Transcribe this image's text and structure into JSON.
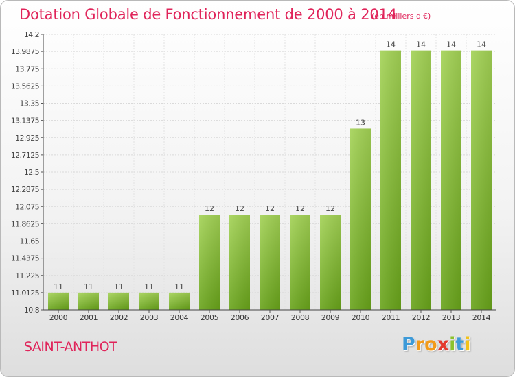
{
  "chart_data": {
    "type": "bar",
    "title": "Dotation Globale de Fonctionnement de 2000 à 2014",
    "unit_label": "(en milliers d'€)",
    "categories": [
      "2000",
      "2001",
      "2002",
      "2003",
      "2004",
      "2005",
      "2006",
      "2007",
      "2008",
      "2009",
      "2010",
      "2011",
      "2012",
      "2013",
      "2014"
    ],
    "values": [
      11,
      11,
      11,
      11,
      11,
      12,
      12,
      12,
      12,
      12,
      13,
      14,
      14,
      14,
      14
    ],
    "bar_levels": [
      11.0125,
      11.0125,
      11.0125,
      11.0125,
      11.0125,
      11.975,
      11.975,
      11.975,
      11.975,
      11.975,
      13.0375,
      14.0,
      14.0,
      14.0,
      14.0
    ],
    "value_labels": [
      "11",
      "11",
      "11",
      "11",
      "11",
      "12",
      "12",
      "12",
      "12",
      "12",
      "13",
      "14",
      "14",
      "14",
      "14"
    ],
    "ylim": [
      10.8,
      14.2
    ],
    "yticks": [
      "14.2",
      "13.9875",
      "13.775",
      "13.5625",
      "13.35",
      "13.1375",
      "12.925",
      "12.7125",
      "12.5",
      "12.2875",
      "12.075",
      "11.8625",
      "11.65",
      "11.4375",
      "11.225",
      "11.0125",
      "10.8"
    ],
    "ytick_values": [
      14.2,
      13.9875,
      13.775,
      13.5625,
      13.35,
      13.1375,
      12.925,
      12.7125,
      12.5,
      12.2875,
      12.075,
      11.8625,
      11.65,
      11.4375,
      11.225,
      11.0125,
      10.8
    ],
    "grid": true,
    "xlabel": "",
    "ylabel": "",
    "colors": {
      "bar_light": "#9ccc4a",
      "bar_dark": "#6aa51c",
      "text": "#e0245a",
      "axis": "#333333",
      "grid": "#d8d8d8"
    }
  },
  "footer": {
    "commune": "SAINT-ANTHOT",
    "logo_text": "Proxiti"
  }
}
